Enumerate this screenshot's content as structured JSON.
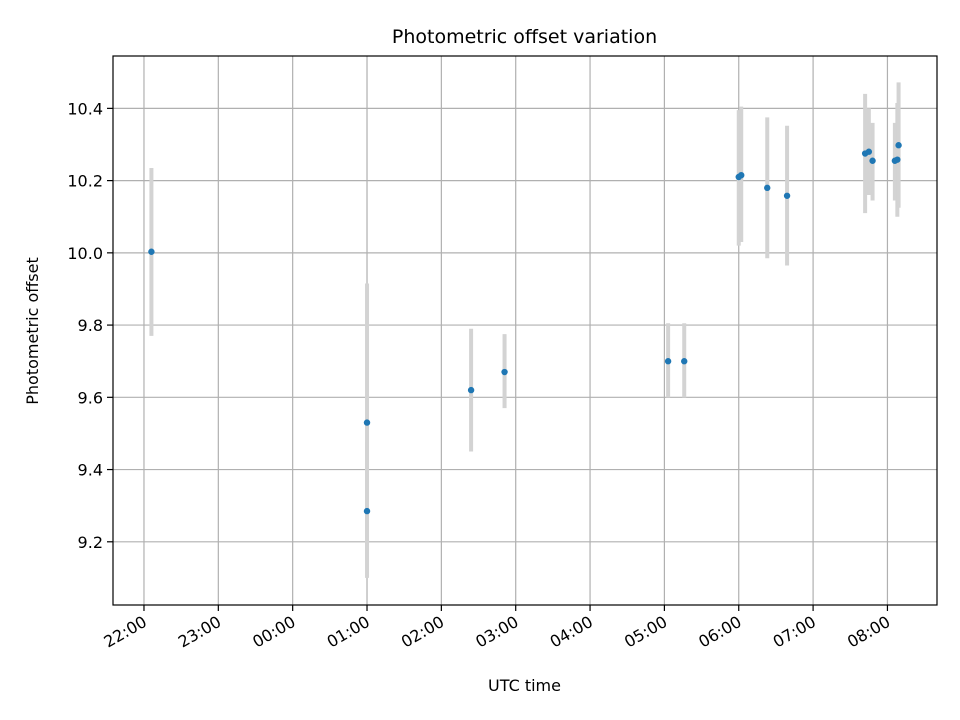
{
  "chart_data": {
    "type": "scatter",
    "title": "Photometric offset variation",
    "xlabel": "UTC time",
    "ylabel": "Photometric offset",
    "x_unit": "UTC time (previous day evening into next morning)",
    "xlim": [
      "21:35",
      "08:40"
    ],
    "ylim": [
      9.025,
      10.545
    ],
    "grid": true,
    "x_ticks": [
      "22:00",
      "23:00",
      "00:00",
      "01:00",
      "02:00",
      "03:00",
      "04:00",
      "05:00",
      "06:00",
      "07:00",
      "08:00"
    ],
    "y_ticks": [
      "9.2",
      "9.4",
      "9.6",
      "9.8",
      "10.0",
      "10.2",
      "10.4"
    ],
    "colors": {
      "point": "#1f77b4",
      "errorbar": "#d3d3d3",
      "grid": "#b0b0b0"
    },
    "series": [
      {
        "points": [
          {
            "x": "22:06",
            "y": 10.003,
            "ylow": 9.77,
            "yhigh": 10.235
          },
          {
            "x": "01:00",
            "y": 9.53,
            "ylow": 9.15,
            "yhigh": 9.915
          },
          {
            "x": "01:00",
            "y": 9.285,
            "ylow": 9.1,
            "yhigh": 9.475
          },
          {
            "x": "02:24",
            "y": 9.62,
            "ylow": 9.45,
            "yhigh": 9.79
          },
          {
            "x": "02:51",
            "y": 9.67,
            "ylow": 9.57,
            "yhigh": 9.775
          },
          {
            "x": "05:03",
            "y": 9.7,
            "ylow": 9.6,
            "yhigh": 9.805
          },
          {
            "x": "05:16",
            "y": 9.7,
            "ylow": 9.6,
            "yhigh": 9.805
          },
          {
            "x": "06:00",
            "y": 10.21,
            "ylow": 10.02,
            "yhigh": 10.395
          },
          {
            "x": "06:02",
            "y": 10.215,
            "ylow": 10.03,
            "yhigh": 10.405
          },
          {
            "x": "06:23",
            "y": 10.18,
            "ylow": 9.985,
            "yhigh": 10.375
          },
          {
            "x": "06:39",
            "y": 10.158,
            "ylow": 9.965,
            "yhigh": 10.352
          },
          {
            "x": "07:42",
            "y": 10.275,
            "ylow": 10.11,
            "yhigh": 10.44
          },
          {
            "x": "07:45",
            "y": 10.28,
            "ylow": 10.16,
            "yhigh": 10.4
          },
          {
            "x": "07:48",
            "y": 10.255,
            "ylow": 10.145,
            "yhigh": 10.36
          },
          {
            "x": "08:06",
            "y": 10.255,
            "ylow": 10.145,
            "yhigh": 10.36
          },
          {
            "x": "08:08",
            "y": 10.258,
            "ylow": 10.1,
            "yhigh": 10.415
          },
          {
            "x": "08:09",
            "y": 10.298,
            "ylow": 10.125,
            "yhigh": 10.472
          }
        ]
      }
    ]
  }
}
